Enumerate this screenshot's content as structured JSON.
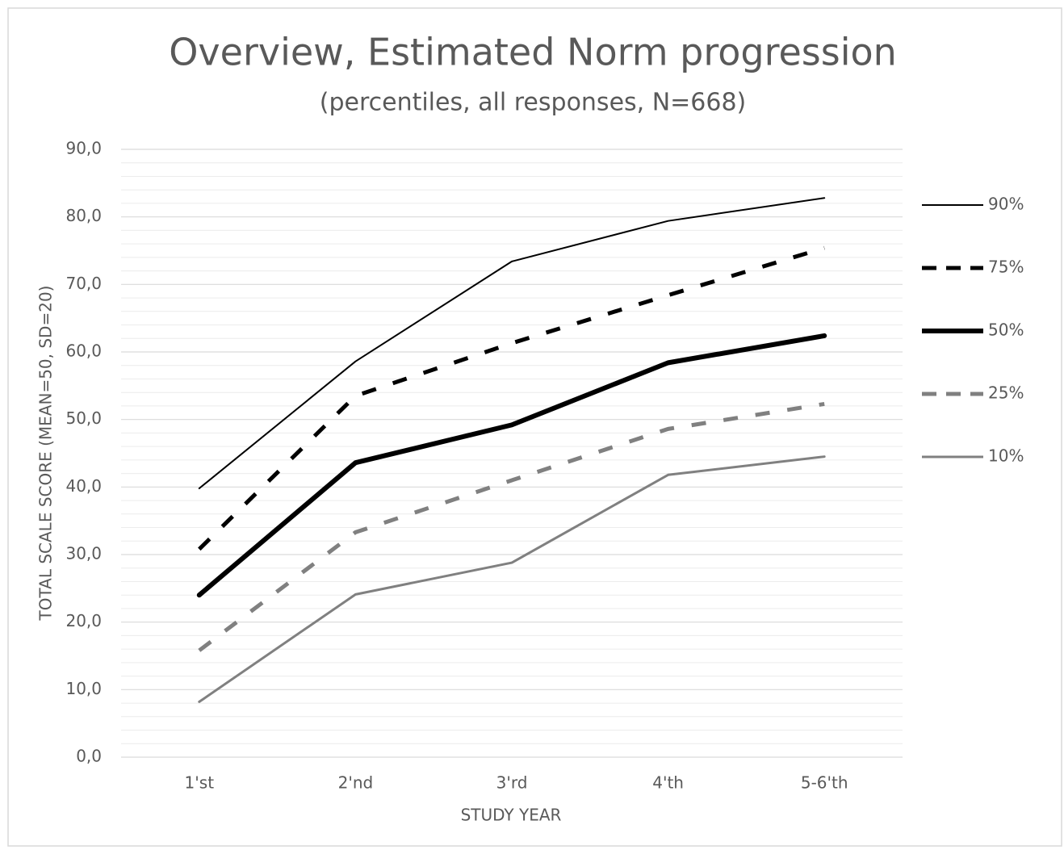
{
  "chart_data": {
    "type": "line",
    "title": "Overview, Estimated Norm progression",
    "subtitle": "(percentiles, all responses, N=668)",
    "x_label": "STUDY YEAR",
    "y_label": "TOTAL SCALE  SCORE  (MEAN=50, SD=20)",
    "categories": [
      "1'st",
      "2'nd",
      "3'rd",
      "4'th",
      "5-6'th"
    ],
    "ylim": [
      0,
      90
    ],
    "yticks": [
      {
        "value": 0,
        "label": "0,0"
      },
      {
        "value": 10,
        "label": "10,0"
      },
      {
        "value": 20,
        "label": "20,0"
      },
      {
        "value": 30,
        "label": "30,0"
      },
      {
        "value": 40,
        "label": "40,0"
      },
      {
        "value": 50,
        "label": "50,0"
      },
      {
        "value": 60,
        "label": "60,0"
      },
      {
        "value": 70,
        "label": "70,0"
      },
      {
        "value": 80,
        "label": "80,0"
      },
      {
        "value": 90,
        "label": "90,0"
      }
    ],
    "grid": true,
    "minor_grid": true,
    "legend": "right",
    "series": [
      {
        "name": "90%",
        "color": "#000000",
        "line_width": 2,
        "dashed": false,
        "values": [
          39.8,
          58.6,
          73.4,
          79.4,
          82.8
        ]
      },
      {
        "name": "75%",
        "color": "#000000",
        "line_width": 5,
        "dashed": true,
        "values": [
          30.8,
          53.5,
          61.3,
          68.4,
          75.4
        ]
      },
      {
        "name": "50%",
        "color": "#000000",
        "line_width": 6,
        "dashed": false,
        "values": [
          24.0,
          43.6,
          49.2,
          58.4,
          62.4
        ]
      },
      {
        "name": "25%",
        "color": "#808080",
        "line_width": 5,
        "dashed": true,
        "values": [
          15.8,
          33.3,
          41.0,
          48.6,
          52.3
        ]
      },
      {
        "name": "10%",
        "color": "#808080",
        "line_width": 3,
        "dashed": false,
        "values": [
          8.2,
          24.1,
          28.8,
          41.8,
          44.5
        ]
      }
    ]
  }
}
